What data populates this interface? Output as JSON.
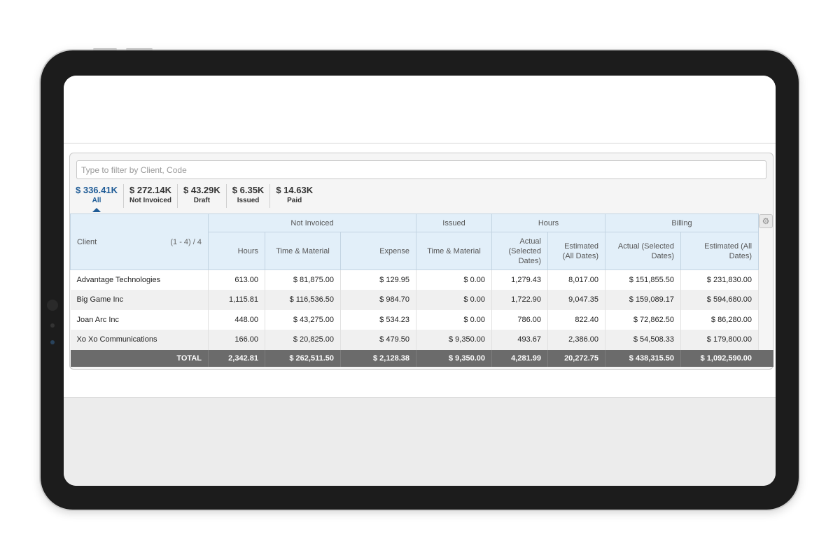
{
  "filter": {
    "placeholder": "Type to filter by Client, Code",
    "value": ""
  },
  "summary": [
    {
      "amount": "$ 336.41K",
      "label": "All",
      "active": true
    },
    {
      "amount": "$ 272.14K",
      "label": "Not Invoiced"
    },
    {
      "amount": "$ 43.29K",
      "label": "Draft"
    },
    {
      "amount": "$ 6.35K",
      "label": "Issued"
    },
    {
      "amount": "$ 14.63K",
      "label": "Paid"
    }
  ],
  "table": {
    "groups": {
      "not_invoiced": "Not Invoiced",
      "issued": "Issued",
      "hours": "Hours",
      "billing": "Billing"
    },
    "client_header": "Client",
    "range": "(1 - 4) / 4",
    "columns": {
      "ni_hours": "Hours",
      "ni_tm": "Time & Material",
      "ni_expense": "Expense",
      "is_tm": "Time & Material",
      "hrs_actual": "Actual (Selected Dates)",
      "hrs_estimated": "Estimated (All Dates)",
      "bill_actual": "Actual (Selected Dates)",
      "bill_estimated": "Estimated (All Dates)"
    },
    "rows": [
      {
        "client": "Advantage Technologies",
        "ni_hours": "613.00",
        "ni_tm": "$ 81,875.00",
        "ni_expense": "$ 129.95",
        "is_tm": "$ 0.00",
        "hrs_actual": "1,279.43",
        "hrs_estimated": "8,017.00",
        "bill_actual": "$ 151,855.50",
        "bill_estimated": "$ 231,830.00"
      },
      {
        "client": "Big Game Inc",
        "ni_hours": "1,115.81",
        "ni_tm": "$ 116,536.50",
        "ni_expense": "$ 984.70",
        "is_tm": "$ 0.00",
        "hrs_actual": "1,722.90",
        "hrs_estimated": "9,047.35",
        "bill_actual": "$ 159,089.17",
        "bill_estimated": "$ 594,680.00"
      },
      {
        "client": "Joan Arc Inc",
        "ni_hours": "448.00",
        "ni_tm": "$ 43,275.00",
        "ni_expense": "$ 534.23",
        "is_tm": "$ 0.00",
        "hrs_actual": "786.00",
        "hrs_estimated": "822.40",
        "bill_actual": "$ 72,862.50",
        "bill_estimated": "$ 86,280.00"
      },
      {
        "client": "Xo Xo Communications",
        "ni_hours": "166.00",
        "ni_tm": "$ 20,825.00",
        "ni_expense": "$ 479.50",
        "is_tm": "$ 9,350.00",
        "hrs_actual": "493.67",
        "hrs_estimated": "2,386.00",
        "bill_actual": "$ 54,508.33",
        "bill_estimated": "$ 179,800.00"
      }
    ],
    "total": {
      "label": "TOTAL",
      "ni_hours": "2,342.81",
      "ni_tm": "$ 262,511.50",
      "ni_expense": "$ 2,128.38",
      "is_tm": "$ 9,350.00",
      "hrs_actual": "4,281.99",
      "hrs_estimated": "20,272.75",
      "bill_actual": "$ 438,315.50",
      "bill_estimated": "$ 1,092,590.00"
    }
  },
  "icons": {
    "settings": "gear-icon"
  },
  "colors": {
    "accent": "#1e5b96",
    "header_bg": "#e2eff9",
    "total_bg": "#6b6b6b"
  }
}
